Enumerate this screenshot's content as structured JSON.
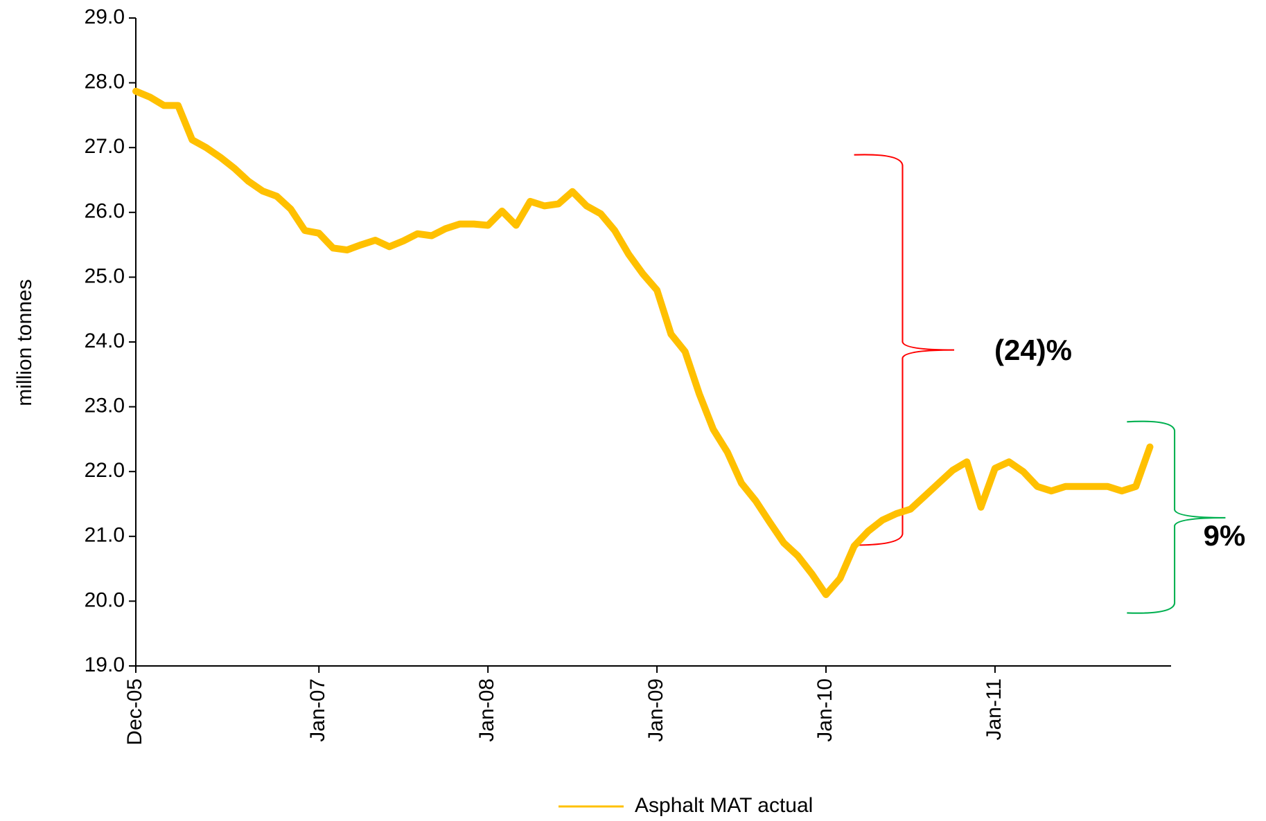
{
  "chart_data": {
    "type": "line",
    "y_label": "million tonnes",
    "categories": [
      "Dec-05",
      null,
      null,
      null,
      null,
      null,
      null,
      null,
      null,
      null,
      null,
      null,
      null,
      "Jan-07",
      null,
      null,
      null,
      null,
      null,
      null,
      null,
      null,
      null,
      null,
      null,
      "Jan-08",
      null,
      null,
      null,
      null,
      null,
      null,
      null,
      null,
      null,
      null,
      null,
      "Jan-09",
      null,
      null,
      null,
      null,
      null,
      null,
      null,
      null,
      null,
      null,
      null,
      "Jan-10",
      null,
      null,
      null,
      null,
      null,
      null,
      null,
      null,
      null,
      null,
      null,
      "Jan-11",
      null,
      null,
      null,
      null,
      null,
      null,
      null,
      null,
      null,
      null,
      null
    ],
    "series": [
      {
        "name": "Asphalt MAT actual",
        "color": "#ffc000",
        "values": [
          27.87,
          27.78,
          27.65,
          27.65,
          27.12,
          27.0,
          26.85,
          26.68,
          26.48,
          26.33,
          26.25,
          26.05,
          25.72,
          25.68,
          25.45,
          25.42,
          25.5,
          25.57,
          25.47,
          25.56,
          25.67,
          25.64,
          25.75,
          25.82,
          25.82,
          25.8,
          26.02,
          25.8,
          26.17,
          26.1,
          26.13,
          26.32,
          26.1,
          25.98,
          25.72,
          25.35,
          25.05,
          24.8,
          24.12,
          23.85,
          23.2,
          22.65,
          22.3,
          21.82,
          21.55,
          21.22,
          20.9,
          20.7,
          20.42,
          20.1,
          20.35,
          20.85,
          21.08,
          21.25,
          21.35,
          21.42,
          21.62,
          21.82,
          22.02,
          22.15,
          21.45,
          22.05,
          22.15,
          22.0,
          21.77,
          21.7,
          21.77,
          21.77,
          21.77,
          21.77,
          21.7,
          21.77,
          22.38
        ]
      }
    ],
    "ylim": [
      19,
      29
    ],
    "yticks": [
      {
        "value": 19,
        "label": "19.0"
      },
      {
        "value": 20,
        "label": "20.0"
      },
      {
        "value": 21,
        "label": "21.0"
      },
      {
        "value": 22,
        "label": "22.0"
      },
      {
        "value": 23,
        "label": "23.0"
      },
      {
        "value": 24,
        "label": "24.0"
      },
      {
        "value": 25,
        "label": "25.0"
      },
      {
        "value": 26,
        "label": "26.0"
      },
      {
        "value": 27,
        "label": "27.0"
      },
      {
        "value": 28,
        "label": "28.0"
      },
      {
        "value": 29,
        "label": "29.0"
      }
    ],
    "grid": false,
    "legend": "bottom",
    "annotations": [
      {
        "text": "(24)%",
        "color": "#ff0000"
      },
      {
        "text": "9%",
        "color": "#00b050"
      }
    ]
  }
}
